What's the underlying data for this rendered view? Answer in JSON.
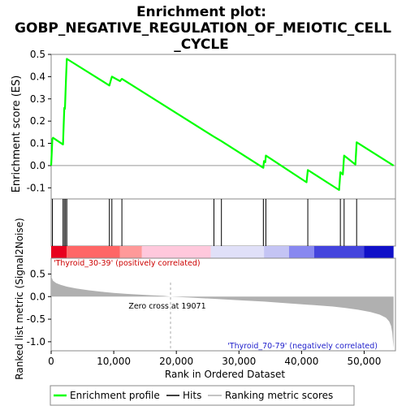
{
  "chart_data": {
    "type": "line",
    "title_line1": "Enrichment plot:",
    "title_line2": "GOBP_NEGATIVE_REGULATION_OF_MEIOTIC_CELL",
    "title_line3": "_CYCLE",
    "ylabel_top": "Enrichment score (ES)",
    "ylabel_bottom": "Ranked list metric (Signal2Noise)",
    "xlabel": "Rank in Ordered Dataset",
    "xlim": [
      0,
      55000
    ],
    "es_ylim": [
      -0.15,
      0.5
    ],
    "es_yticks": [
      -0.1,
      0.0,
      0.1,
      0.2,
      0.3,
      0.4,
      0.5
    ],
    "es_ytick_labels": [
      "-0.1",
      "0.0",
      "0.1",
      "0.2",
      "0.3",
      "0.4",
      "0.5"
    ],
    "metric_ylim": [
      -1.2,
      0.85
    ],
    "metric_yticks": [
      -1.0,
      -0.5,
      0.0,
      0.5
    ],
    "metric_ytick_labels": [
      "-1.0",
      "-0.5",
      "0.0",
      "0.5"
    ],
    "xticks": [
      0,
      10000,
      20000,
      30000,
      40000,
      50000
    ],
    "xtick_labels": [
      "0",
      "10,000",
      "20,000",
      "30,000",
      "40,000",
      "50,000"
    ],
    "es_profile": {
      "name": "Enrichment profile",
      "color": "#00ff00",
      "x": [
        0,
        200,
        300,
        1900,
        2000,
        2100,
        2200,
        2300,
        2400,
        2500,
        9300,
        9500,
        9700,
        11000,
        11300,
        26000,
        27200,
        33900,
        34000,
        34200,
        34300,
        40800,
        41000,
        46000,
        46200,
        46600,
        46800,
        48600,
        48800,
        54700
      ],
      "y": [
        0.0,
        0.12,
        0.125,
        0.095,
        0.18,
        0.26,
        0.255,
        0.33,
        0.41,
        0.48,
        0.36,
        0.38,
        0.4,
        0.38,
        0.39,
        0.13,
        0.11,
        -0.01,
        0.02,
        0.015,
        0.045,
        -0.075,
        -0.02,
        -0.11,
        -0.03,
        -0.04,
        0.045,
        0.005,
        0.105,
        0.0
      ]
    },
    "hits": {
      "name": "Hits",
      "x": [
        200,
        1900,
        2100,
        2300,
        2500,
        9300,
        9700,
        11300,
        26000,
        27200,
        33900,
        34300,
        41000,
        46200,
        46800,
        48800
      ]
    },
    "metric": {
      "name": "Ranking metric scores",
      "fill_color": "#b0b0b0",
      "x": [
        0,
        300,
        800,
        1500,
        2500,
        4000,
        6000,
        8000,
        10000,
        12000,
        14000,
        16000,
        18000,
        19071,
        22000,
        26000,
        30000,
        34000,
        38000,
        42000,
        45000,
        47000,
        49000,
        51000,
        52500,
        53500,
        54000,
        54300,
        54500,
        54700
      ],
      "y": [
        0.45,
        0.35,
        0.3,
        0.26,
        0.22,
        0.18,
        0.14,
        0.11,
        0.08,
        0.06,
        0.045,
        0.03,
        0.015,
        0.0,
        -0.02,
        -0.05,
        -0.08,
        -0.11,
        -0.15,
        -0.19,
        -0.22,
        -0.25,
        -0.29,
        -0.34,
        -0.4,
        -0.47,
        -0.55,
        -0.65,
        -0.8,
        -1.15
      ]
    },
    "zero_cross": {
      "x": 19071,
      "label": "Zero cross at 19071"
    },
    "pos_label": "'Thyroid_30-39' (positively correlated)",
    "neg_label": "'Thyroid_70-79' (negatively correlated)",
    "colorbar": [
      {
        "from": 0,
        "to": 2500,
        "color": "#e8001e"
      },
      {
        "from": 2500,
        "to": 11000,
        "color": "#ff6666"
      },
      {
        "from": 11000,
        "to": 14500,
        "color": "#ff9999"
      },
      {
        "from": 14500,
        "to": 25500,
        "color": "#ffc8dc"
      },
      {
        "from": 25500,
        "to": 34000,
        "color": "#e0e0f8"
      },
      {
        "from": 34000,
        "to": 38000,
        "color": "#c4c4f4"
      },
      {
        "from": 38000,
        "to": 42000,
        "color": "#8888f0"
      },
      {
        "from": 42000,
        "to": 50000,
        "color": "#4444dd"
      },
      {
        "from": 50000,
        "to": 54700,
        "color": "#1010c8"
      }
    ],
    "legend": [
      {
        "label": "Enrichment profile",
        "color": "#00ff00"
      },
      {
        "label": "Hits",
        "color": "#000000"
      },
      {
        "label": "Ranking metric scores",
        "color": "#b0b0b0"
      }
    ]
  }
}
